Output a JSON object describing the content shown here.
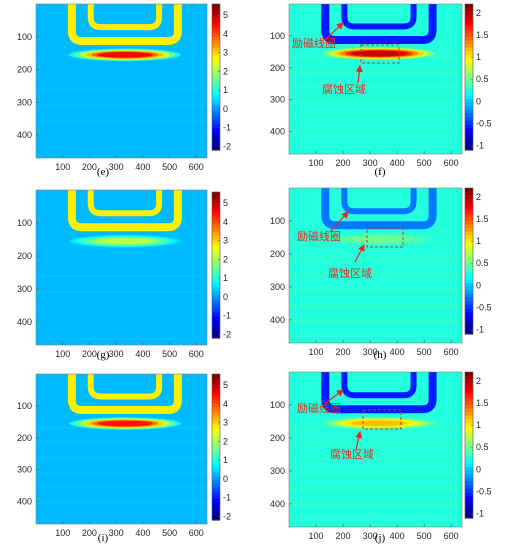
{
  "figure": {
    "panels": [
      {
        "id": "e",
        "label": "(e)",
        "variant": "vertical",
        "colorbar": {
          "min": -2.2,
          "max": 5.6,
          "ticks": [
            "5",
            "4",
            "3",
            "2",
            "1",
            "0",
            "-1",
            "-2"
          ]
        },
        "x_ticks": [
          "100",
          "200",
          "300",
          "400",
          "500",
          "600"
        ],
        "y_ticks": [
          "100",
          "200",
          "300",
          "400"
        ],
        "annotations": []
      },
      {
        "id": "f",
        "label": "(f)",
        "variant": "horizontal",
        "colorbar": {
          "min": -1.1,
          "max": 2.2,
          "ticks": [
            "2",
            "1.5",
            "1",
            "0.5",
            "0",
            "-0.5",
            "-1"
          ]
        },
        "x_ticks": [
          "100",
          "200",
          "300",
          "400",
          "500",
          "600"
        ],
        "y_ticks": [
          "100",
          "200",
          "300",
          "400"
        ],
        "annotations": [
          {
            "name": "coil-label",
            "text": "励磁线圈"
          },
          {
            "name": "corrosion-label",
            "text": "腐蚀区域"
          }
        ]
      },
      {
        "id": "g",
        "label": "(g)",
        "variant": "vertical",
        "colorbar": {
          "min": -2.2,
          "max": 5.6,
          "ticks": [
            "5",
            "4",
            "3",
            "2",
            "1",
            "0",
            "-1",
            "-2"
          ]
        },
        "x_ticks": [
          "100",
          "200",
          "300",
          "400",
          "500",
          "600"
        ],
        "y_ticks": [
          "100",
          "200",
          "300",
          "400"
        ],
        "annotations": []
      },
      {
        "id": "h",
        "label": "(h)",
        "variant": "horizontal",
        "colorbar": {
          "min": -1.1,
          "max": 2.2,
          "ticks": [
            "2",
            "1.5",
            "1",
            "0.5",
            "0",
            "-0.5",
            "-1"
          ]
        },
        "x_ticks": [
          "100",
          "200",
          "300",
          "400",
          "500",
          "600"
        ],
        "y_ticks": [
          "100",
          "200",
          "300",
          "400"
        ],
        "annotations": [
          {
            "name": "coil-label",
            "text": "励磁线圈"
          },
          {
            "name": "corrosion-label",
            "text": "腐蚀区域"
          }
        ]
      },
      {
        "id": "i",
        "label": "(i)",
        "variant": "vertical",
        "colorbar": {
          "min": -2.2,
          "max": 5.6,
          "ticks": [
            "5",
            "4",
            "3",
            "2",
            "1",
            "0",
            "-1",
            "-2"
          ]
        },
        "x_ticks": [
          "100",
          "200",
          "300",
          "400",
          "500",
          "600"
        ],
        "y_ticks": [
          "100",
          "200",
          "300",
          "400"
        ],
        "annotations": []
      },
      {
        "id": "j",
        "label": "(j)",
        "variant": "horizontal",
        "colorbar": {
          "min": -1.1,
          "max": 2.2,
          "ticks": [
            "2",
            "1.5",
            "1",
            "0.5",
            "0",
            "-0.5",
            "-1"
          ]
        },
        "x_ticks": [
          "100",
          "200",
          "300",
          "400",
          "500",
          "600"
        ],
        "y_ticks": [
          "100",
          "200",
          "300",
          "400"
        ],
        "annotations": [
          {
            "name": "coil-label",
            "text": "励磁线圈"
          },
          {
            "name": "corrosion-label",
            "text": "腐蚀区域"
          }
        ]
      }
    ]
  },
  "chart_data": [
    {
      "type": "heatmap",
      "panel": "(e)",
      "colormap": "jet",
      "colorbar_range": [
        -2.2,
        5.6
      ],
      "colorbar_ticks": [
        5,
        4,
        3,
        2,
        1,
        0,
        -1,
        -2
      ],
      "x_ticks": [
        100,
        200,
        300,
        400,
        500,
        600
      ],
      "y_ticks": [
        100,
        200,
        300,
        400
      ],
      "y_direction": "reversed",
      "features": [
        {
          "kind": "coil",
          "value": 2.8
        },
        {
          "kind": "hot-stripe",
          "value": 4.8
        },
        {
          "kind": "background",
          "value": 0.2
        }
      ]
    },
    {
      "type": "heatmap",
      "panel": "(f)",
      "colormap": "jet",
      "colorbar_range": [
        -1.1,
        2.2
      ],
      "colorbar_ticks": [
        2,
        1.5,
        1,
        0.5,
        0,
        -0.5,
        -1
      ],
      "x_ticks": [
        100,
        200,
        300,
        400,
        500,
        600
      ],
      "y_ticks": [
        100,
        200,
        300,
        400
      ],
      "y_direction": "reversed",
      "features": [
        {
          "kind": "coil",
          "value": -0.6
        },
        {
          "kind": "hot-stripe",
          "value": 2.0
        },
        {
          "kind": "background",
          "value": 0.25
        }
      ],
      "annotations": [
        "励磁线圈",
        "腐蚀区域"
      ]
    },
    {
      "type": "heatmap",
      "panel": "(g)",
      "colormap": "jet",
      "colorbar_range": [
        -2.2,
        5.6
      ],
      "colorbar_ticks": [
        5,
        4,
        3,
        2,
        1,
        0,
        -1,
        -2
      ],
      "x_ticks": [
        100,
        200,
        300,
        400,
        500,
        600
      ],
      "y_ticks": [
        100,
        200,
        300,
        400
      ],
      "y_direction": "reversed",
      "features": [
        {
          "kind": "coil",
          "value": 2.8
        },
        {
          "kind": "hot-stripe",
          "value": 2.2
        },
        {
          "kind": "background",
          "value": 0.2
        }
      ]
    },
    {
      "type": "heatmap",
      "panel": "(h)",
      "colormap": "jet",
      "colorbar_range": [
        -1.1,
        2.2
      ],
      "colorbar_ticks": [
        2,
        1.5,
        1,
        0.5,
        0,
        -0.5,
        -1
      ],
      "x_ticks": [
        100,
        200,
        300,
        400,
        500,
        600
      ],
      "y_ticks": [
        100,
        200,
        300,
        400
      ],
      "y_direction": "reversed",
      "features": [
        {
          "kind": "coil",
          "value": -0.3
        },
        {
          "kind": "hot-stripe",
          "value": 0.5
        },
        {
          "kind": "background",
          "value": 0.25
        }
      ],
      "annotations": [
        "励磁线圈",
        "腐蚀区域"
      ]
    },
    {
      "type": "heatmap",
      "panel": "(i)",
      "colormap": "jet",
      "colorbar_range": [
        -2.2,
        5.6
      ],
      "colorbar_ticks": [
        5,
        4,
        3,
        2,
        1,
        0,
        -1,
        -2
      ],
      "x_ticks": [
        100,
        200,
        300,
        400,
        500,
        600
      ],
      "y_ticks": [
        100,
        200,
        300,
        400
      ],
      "y_direction": "reversed",
      "features": [
        {
          "kind": "coil",
          "value": 2.8
        },
        {
          "kind": "hot-stripe",
          "value": 4.6
        },
        {
          "kind": "background",
          "value": 0.2
        }
      ]
    },
    {
      "type": "heatmap",
      "panel": "(j)",
      "colormap": "jet",
      "colorbar_range": [
        -1.1,
        2.2
      ],
      "colorbar_ticks": [
        2,
        1.5,
        1,
        0.5,
        0,
        -0.5,
        -1
      ],
      "x_ticks": [
        100,
        200,
        300,
        400,
        500,
        600
      ],
      "y_ticks": [
        100,
        200,
        300,
        400
      ],
      "y_direction": "reversed",
      "features": [
        {
          "kind": "coil",
          "value": -0.6
        },
        {
          "kind": "hot-stripe",
          "value": 1.2
        },
        {
          "kind": "background",
          "value": 0.25
        }
      ],
      "annotations": [
        "励磁线圈",
        "腐蚀区域"
      ]
    }
  ]
}
